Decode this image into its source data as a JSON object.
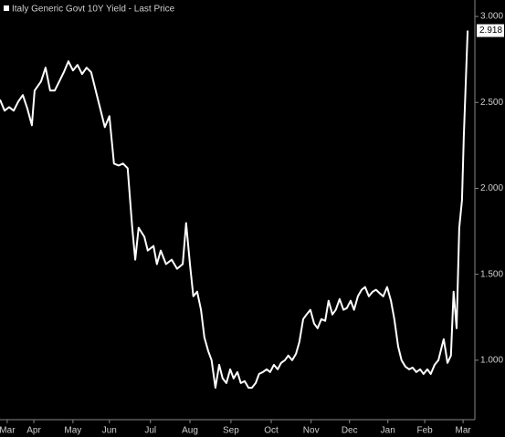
{
  "chart_data": {
    "type": "line",
    "title": "Italy Generic Govt 10Y Yield - Last Price",
    "background": "#000000",
    "series": [
      {
        "name": "Italy Generic Govt 10Y Yield",
        "color": "#ffffff",
        "x": [
          -0.19,
          -0.07,
          0.05,
          0.17,
          0.29,
          0.41,
          0.53,
          0.65,
          0.72,
          0.89,
          1.01,
          1.13,
          1.25,
          1.37,
          1.49,
          1.61,
          1.73,
          1.85,
          1.97,
          2.09,
          2.21,
          2.33,
          2.45,
          2.57,
          2.69,
          2.81,
          2.93,
          3.05,
          3.17,
          3.29,
          3.37,
          3.46,
          3.61,
          3.7,
          3.85,
          3.94,
          4.04,
          4.18,
          4.33,
          4.47,
          4.62,
          4.71,
          4.81,
          4.9,
          5.0,
          5.1,
          5.19,
          5.29,
          5.38,
          5.48,
          5.58,
          5.67,
          5.77,
          5.87,
          5.96,
          6.06,
          6.15,
          6.25,
          6.35,
          6.44,
          6.54,
          6.63,
          6.73,
          6.83,
          6.92,
          7.02,
          7.12,
          7.21,
          7.31,
          7.4,
          7.5,
          7.6,
          7.69,
          7.79,
          7.88,
          7.98,
          8.08,
          8.17,
          8.27,
          8.37,
          8.46,
          8.56,
          8.65,
          8.75,
          8.85,
          8.94,
          9.04,
          9.13,
          9.23,
          9.33,
          9.42,
          9.52,
          9.62,
          9.71,
          9.81,
          9.9,
          10.0,
          10.1,
          10.19,
          10.29,
          10.38,
          10.48,
          10.58,
          10.67,
          10.77,
          10.87,
          10.96,
          11.06,
          11.15,
          11.25,
          11.35,
          11.44,
          11.49,
          11.54,
          11.59,
          11.68,
          11.75,
          11.83,
          11.9,
          11.97,
          12.02,
          12.12
        ],
        "values": [
          2.516,
          2.452,
          2.473,
          2.452,
          2.505,
          2.543,
          2.463,
          2.367,
          2.569,
          2.622,
          2.702,
          2.569,
          2.569,
          2.622,
          2.676,
          2.739,
          2.686,
          2.718,
          2.665,
          2.702,
          2.676,
          2.569,
          2.463,
          2.356,
          2.42,
          2.144,
          2.133,
          2.144,
          2.117,
          1.771,
          1.585,
          1.771,
          1.718,
          1.638,
          1.665,
          1.559,
          1.638,
          1.559,
          1.585,
          1.532,
          1.559,
          1.798,
          1.559,
          1.372,
          1.399,
          1.293,
          1.133,
          1.053,
          1.0,
          0.84,
          0.973,
          0.894,
          0.867,
          0.947,
          0.894,
          0.931,
          0.867,
          0.878,
          0.84,
          0.84,
          0.867,
          0.92,
          0.931,
          0.947,
          0.931,
          0.973,
          0.947,
          0.984,
          1.0,
          1.027,
          1.0,
          1.037,
          1.106,
          1.239,
          1.266,
          1.293,
          1.213,
          1.186,
          1.239,
          1.229,
          1.346,
          1.266,
          1.293,
          1.356,
          1.293,
          1.303,
          1.346,
          1.293,
          1.372,
          1.41,
          1.426,
          1.372,
          1.399,
          1.41,
          1.388,
          1.372,
          1.426,
          1.346,
          1.239,
          1.08,
          1.0,
          0.963,
          0.947,
          0.957,
          0.931,
          0.947,
          0.92,
          0.947,
          0.92,
          0.973,
          1.0,
          1.08,
          1.122,
          1.053,
          0.984,
          1.027,
          1.399,
          1.186,
          1.771,
          1.931,
          2.303,
          2.918
        ],
        "last_value_label": {
          "value": 2.918,
          "label": "2.918"
        }
      }
    ],
    "xlim": [
      -0.19,
      12.31
    ],
    "xticks": [
      {
        "value": 0,
        "label": "Mar"
      },
      {
        "value": 0.7,
        "label": "Apr"
      },
      {
        "value": 1.73,
        "label": "May"
      },
      {
        "value": 2.69,
        "label": "Jun"
      },
      {
        "value": 3.77,
        "label": "Jul"
      },
      {
        "value": 4.81,
        "label": "Aug"
      },
      {
        "value": 5.89,
        "label": "Sep"
      },
      {
        "value": 6.95,
        "label": "Oct"
      },
      {
        "value": 8.0,
        "label": "Nov"
      },
      {
        "value": 9.01,
        "label": "Dec"
      },
      {
        "value": 10.02,
        "label": "Jan"
      },
      {
        "value": 10.99,
        "label": "Feb"
      },
      {
        "value": 12.0,
        "label": "Mar"
      }
    ],
    "ylim": [
      0.654,
      3.096
    ],
    "yticks": [
      {
        "value": 1,
        "label": "1.000"
      },
      {
        "value": 1.5,
        "label": "1.500"
      },
      {
        "value": 2,
        "label": "2.000"
      },
      {
        "value": 2.5,
        "label": "2.500"
      },
      {
        "value": 3,
        "label": "3.000"
      }
    ]
  }
}
